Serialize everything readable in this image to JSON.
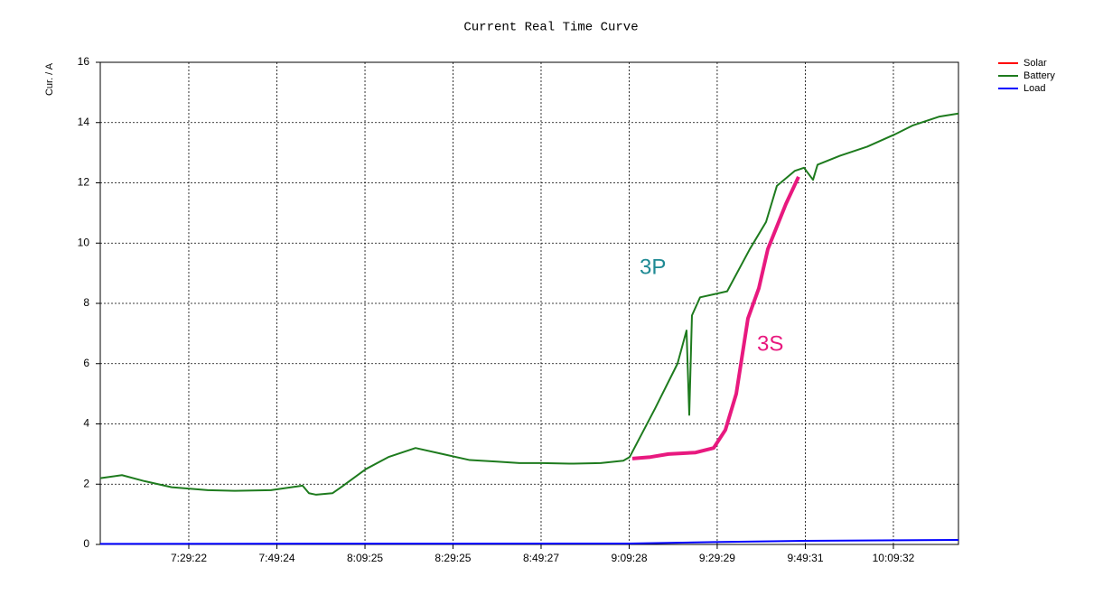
{
  "chart_data": {
    "type": "line",
    "title": "Current Real Time Curve",
    "y_label": "Cur. / A",
    "xlim": [
      429.25,
      624.32
    ],
    "ylim": [
      0,
      16
    ],
    "yticks": [
      0,
      2,
      4,
      6,
      8,
      10,
      12,
      14,
      16
    ],
    "xticks": [
      {
        "value": 449.37,
        "label": "7:29:22"
      },
      {
        "value": 469.4,
        "label": "7:49:24"
      },
      {
        "value": 489.42,
        "label": "8:09:25"
      },
      {
        "value": 509.42,
        "label": "8:29:25"
      },
      {
        "value": 529.45,
        "label": "8:49:27"
      },
      {
        "value": 549.47,
        "label": "9:09:28"
      },
      {
        "value": 569.48,
        "label": "9:29:29"
      },
      {
        "value": 589.52,
        "label": "9:49:31"
      },
      {
        "value": 609.53,
        "label": "10:09:32"
      }
    ],
    "grid": true,
    "legend": "right",
    "series": [
      {
        "name": "Solar",
        "color": "#ff0000",
        "x": [],
        "values": []
      },
      {
        "name": "Battery",
        "color": "#1e7b1e",
        "x": [
          429.25,
          434.18,
          439.31,
          445.47,
          453.68,
          459.84,
          468.06,
          475.24,
          476.68,
          478.32,
          482.02,
          484.48,
          489.62,
          494.75,
          500.91,
          507.07,
          513.23,
          519.39,
          524.52,
          529.66,
          535.82,
          543.0,
          548.14,
          549.58,
          555.32,
          560.46,
          562.51,
          563.13,
          563.74,
          565.59,
          568.67,
          571.75,
          576.89,
          580.58,
          583.05,
          587.15,
          589.21,
          591.26,
          592.29,
          597.42,
          603.58,
          609.74,
          613.85,
          620.01,
          624.32
        ],
        "values": [
          2.2,
          2.3,
          2.1,
          1.9,
          1.8,
          1.78,
          1.8,
          1.95,
          1.7,
          1.65,
          1.7,
          1.95,
          2.5,
          2.9,
          3.2,
          3.0,
          2.8,
          2.75,
          2.7,
          2.7,
          2.68,
          2.7,
          2.78,
          2.9,
          4.5,
          6.0,
          7.1,
          4.3,
          7.6,
          8.2,
          8.3,
          8.4,
          9.8,
          10.7,
          11.9,
          12.4,
          12.5,
          12.1,
          12.6,
          12.9,
          13.2,
          13.6,
          13.9,
          14.2,
          14.3
        ]
      },
      {
        "name": "Load",
        "color": "#0000ff",
        "x": [
          429.25,
          549.58,
          568.67,
          589.21,
          624.32
        ],
        "values": [
          0.02,
          0.03,
          0.08,
          0.12,
          0.15
        ]
      }
    ],
    "highlight_curve": {
      "color": "#e8197f",
      "x": [
        550.19,
        554.3,
        558.4,
        564.57,
        568.67,
        571.34,
        573.81,
        576.47,
        578.94,
        580.99,
        585.1,
        587.97
      ],
      "values": [
        2.85,
        2.9,
        3.0,
        3.05,
        3.2,
        3.8,
        5.0,
        7.5,
        8.5,
        9.8,
        11.3,
        12.2
      ]
    },
    "annotations": [
      {
        "text": "3P",
        "color": "#1f8a94"
      },
      {
        "text": "3S",
        "color": "#e8197f"
      }
    ]
  }
}
